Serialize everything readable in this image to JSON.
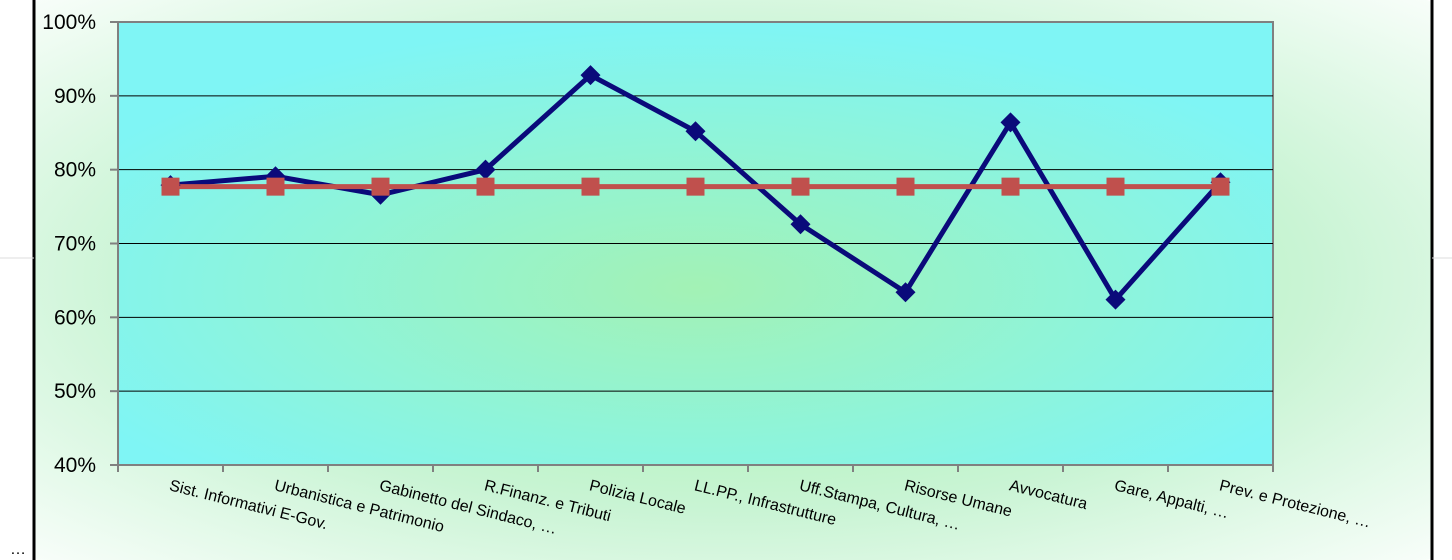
{
  "chart_data": {
    "type": "line",
    "title": "",
    "xlabel": "",
    "ylabel": "",
    "ylim": [
      40,
      100
    ],
    "y_unit": "%",
    "y_ticks": [
      "40%",
      "50%",
      "60%",
      "70%",
      "80%",
      "90%",
      "100%"
    ],
    "grid": true,
    "legend": "none",
    "categories": [
      "Sist. Informativi E-Gov.",
      "Urbanistica e Patrimonio",
      "Gabinetto del Sindaco, …",
      "R.Finanz. e Tributi",
      "Polizia Locale",
      "LL.PP., Infrastrutture",
      "Uff.Stampa, Cultura, …",
      "Risorse Umane",
      "Avvocatura",
      "Gare, Appalti, …",
      "Prev. e Protezione, …"
    ],
    "series": [
      {
        "color": "#0a0a7a",
        "marker": "diamond",
        "values": [
          77.9,
          79.1,
          76.6,
          80.0,
          92.8,
          85.2,
          72.6,
          63.4,
          86.4,
          62.4,
          78.3
        ]
      },
      {
        "color": "#c0504d",
        "marker": "square",
        "values": [
          77.7,
          77.7,
          77.7,
          77.7,
          77.7,
          77.7,
          77.7,
          77.7,
          77.7,
          77.7,
          77.7
        ]
      }
    ],
    "colors": {
      "plot_background": "#7ff5f5",
      "axis": "#808080",
      "gridline": "#000000"
    }
  }
}
